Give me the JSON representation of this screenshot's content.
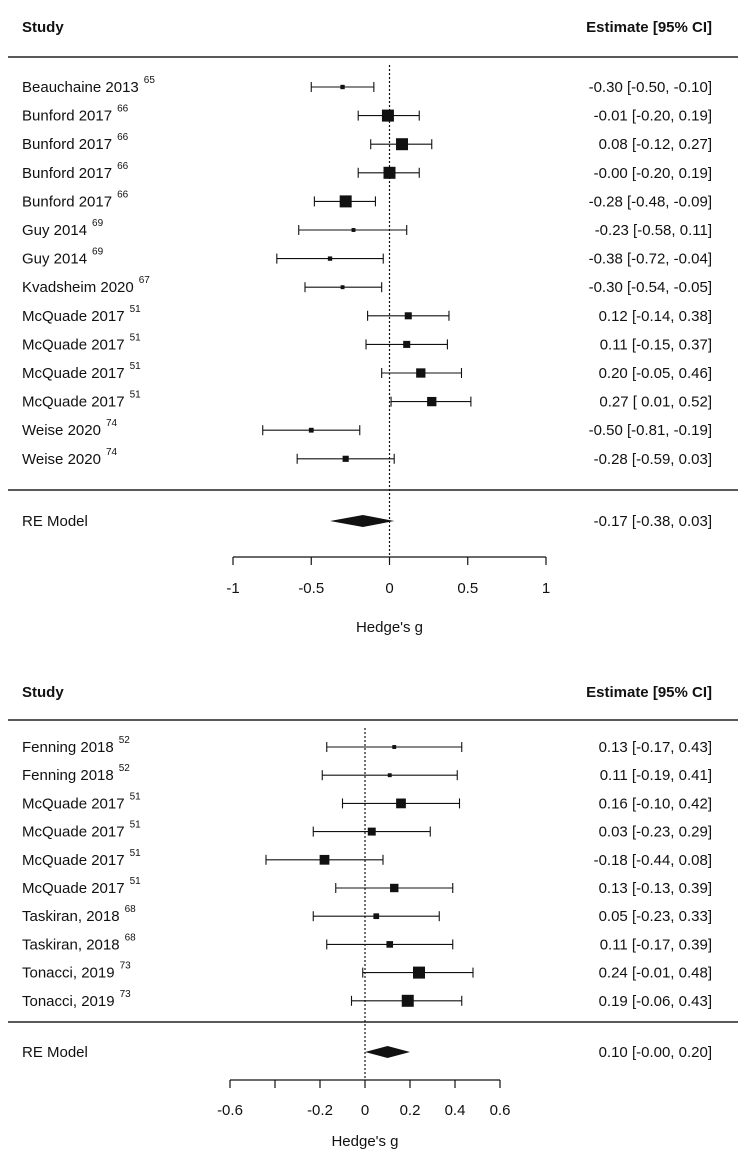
{
  "chart_data": [
    {
      "type": "forest",
      "header": {
        "study": "Study",
        "estimate": "Estimate [95% CI]"
      },
      "xlabel": "Hedge's g",
      "xlim": [
        -1,
        1
      ],
      "ticks": [
        -1,
        -0.5,
        0,
        0.5,
        1
      ],
      "tick_labels": [
        "-1",
        "-0.5",
        "0",
        "0.5",
        "1"
      ],
      "studies": [
        {
          "name": "Beauchaine 2013",
          "ref": "65",
          "est": -0.3,
          "lo": -0.5,
          "hi": -0.1,
          "weight": 0.15,
          "ci_text": "-0.30 [-0.50, -0.10]"
        },
        {
          "name": "Bunford 2017",
          "ref": "66",
          "est": -0.01,
          "lo": -0.2,
          "hi": 0.19,
          "weight": 1.0,
          "ci_text": "-0.01 [-0.20, 0.19]"
        },
        {
          "name": "Bunford 2017",
          "ref": "66",
          "est": 0.08,
          "lo": -0.12,
          "hi": 0.27,
          "weight": 1.0,
          "ci_text": "0.08 [-0.12, 0.27]"
        },
        {
          "name": "Bunford 2017",
          "ref": "66",
          "est": -0.0,
          "lo": -0.2,
          "hi": 0.19,
          "weight": 1.0,
          "ci_text": "-0.00 [-0.20, 0.19]"
        },
        {
          "name": "Bunford 2017",
          "ref": "66",
          "est": -0.28,
          "lo": -0.48,
          "hi": -0.09,
          "weight": 1.0,
          "ci_text": "-0.28 [-0.48, -0.09]"
        },
        {
          "name": "Guy 2014",
          "ref": "69",
          "est": -0.23,
          "lo": -0.58,
          "hi": 0.11,
          "weight": 0.1,
          "ci_text": "-0.23 [-0.58, 0.11]"
        },
        {
          "name": "Guy 2014",
          "ref": "69",
          "est": -0.38,
          "lo": -0.72,
          "hi": -0.04,
          "weight": 0.15,
          "ci_text": "-0.38 [-0.72, -0.04]"
        },
        {
          "name": "Kvadsheim 2020",
          "ref": "67",
          "est": -0.3,
          "lo": -0.54,
          "hi": -0.05,
          "weight": 0.1,
          "ci_text": "-0.30 [-0.54, -0.05]"
        },
        {
          "name": "McQuade 2017",
          "ref": "51",
          "est": 0.12,
          "lo": -0.14,
          "hi": 0.38,
          "weight": 0.45,
          "ci_text": "0.12 [-0.14, 0.38]"
        },
        {
          "name": "McQuade 2017",
          "ref": "51",
          "est": 0.11,
          "lo": -0.15,
          "hi": 0.37,
          "weight": 0.45,
          "ci_text": "0.11 [-0.15, 0.37]"
        },
        {
          "name": "McQuade 2017",
          "ref": "51",
          "est": 0.2,
          "lo": -0.05,
          "hi": 0.46,
          "weight": 0.7,
          "ci_text": "0.20 [-0.05, 0.46]"
        },
        {
          "name": "McQuade 2017",
          "ref": "51",
          "est": 0.27,
          "lo": 0.01,
          "hi": 0.52,
          "weight": 0.7,
          "ci_text": "0.27 [ 0.01, 0.52]"
        },
        {
          "name": "Weise 2020",
          "ref": "74",
          "est": -0.5,
          "lo": -0.81,
          "hi": -0.19,
          "weight": 0.2,
          "ci_text": "-0.50 [-0.81, -0.19]"
        },
        {
          "name": "Weise 2020",
          "ref": "74",
          "est": -0.28,
          "lo": -0.59,
          "hi": 0.03,
          "weight": 0.35,
          "ci_text": "-0.28 [-0.59, 0.03]"
        }
      ],
      "summary": {
        "name": "RE Model",
        "est": -0.17,
        "lo": -0.38,
        "hi": 0.03,
        "ci_text": "-0.17 [-0.38, 0.03]"
      }
    },
    {
      "type": "forest",
      "header": {
        "study": "Study",
        "estimate": "Estimate [95% CI]"
      },
      "xlabel": "Hedge's g",
      "xlim": [
        -0.6,
        0.6
      ],
      "ticks": [
        -0.6,
        -0.4,
        -0.2,
        0,
        0.2,
        0.4,
        0.6
      ],
      "tick_labels": [
        "-0.6",
        "",
        "-0.2",
        "0",
        "0.2",
        "0.4",
        "0.6"
      ],
      "studies": [
        {
          "name": "Fenning 2018",
          "ref": "52",
          "est": 0.13,
          "lo": -0.17,
          "hi": 0.43,
          "weight": 0.1,
          "ci_text": "0.13 [-0.17, 0.43]"
        },
        {
          "name": "Fenning 2018",
          "ref": "52",
          "est": 0.11,
          "lo": -0.19,
          "hi": 0.41,
          "weight": 0.1,
          "ci_text": "0.11 [-0.19, 0.41]"
        },
        {
          "name": "McQuade 2017",
          "ref": "51",
          "est": 0.16,
          "lo": -0.1,
          "hi": 0.42,
          "weight": 0.75,
          "ci_text": "0.16 [-0.10, 0.42]"
        },
        {
          "name": "McQuade 2017",
          "ref": "51",
          "est": 0.03,
          "lo": -0.23,
          "hi": 0.29,
          "weight": 0.55,
          "ci_text": "0.03 [-0.23, 0.29]"
        },
        {
          "name": "McQuade 2017",
          "ref": "51",
          "est": -0.18,
          "lo": -0.44,
          "hi": 0.08,
          "weight": 0.75,
          "ci_text": "-0.18 [-0.44, 0.08]"
        },
        {
          "name": "McQuade 2017",
          "ref": "51",
          "est": 0.13,
          "lo": -0.13,
          "hi": 0.39,
          "weight": 0.6,
          "ci_text": "0.13 [-0.13, 0.39]"
        },
        {
          "name": "Taskiran, 2018",
          "ref": "68",
          "est": 0.05,
          "lo": -0.23,
          "hi": 0.33,
          "weight": 0.3,
          "ci_text": "0.05 [-0.23, 0.33]"
        },
        {
          "name": "Taskiran, 2018",
          "ref": "68",
          "est": 0.11,
          "lo": -0.17,
          "hi": 0.39,
          "weight": 0.4,
          "ci_text": "0.11 [-0.17, 0.39]"
        },
        {
          "name": "Tonacci, 2019",
          "ref": "73",
          "est": 0.24,
          "lo": -0.01,
          "hi": 0.48,
          "weight": 1.0,
          "ci_text": "0.24 [-0.01, 0.48]"
        },
        {
          "name": "Tonacci, 2019",
          "ref": "73",
          "est": 0.19,
          "lo": -0.06,
          "hi": 0.43,
          "weight": 1.0,
          "ci_text": "0.19 [-0.06, 0.43]"
        }
      ],
      "summary": {
        "name": "RE Model",
        "est": 0.1,
        "lo": -0.0,
        "hi": 0.2,
        "ci_text": "0.10 [-0.00, 0.20]"
      }
    }
  ]
}
